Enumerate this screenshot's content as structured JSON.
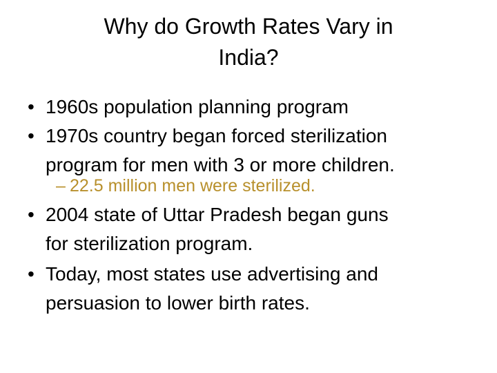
{
  "slide": {
    "background_color": "#ffffff",
    "text_color": "#000000",
    "accent_color": "#B8902C",
    "title": {
      "lines": [
        "Why do Growth Rates Vary in",
        "India?"
      ]
    },
    "bullets": [
      {
        "marker": "•",
        "level": 1,
        "color": "#000000",
        "lines": [
          "1960s population planning program"
        ]
      },
      {
        "marker": "•",
        "level": 1,
        "color": "#000000",
        "lines": [
          "1970s country began forced sterilization",
          "program for men with 3 or more children."
        ]
      },
      {
        "marker": "–",
        "level": 2,
        "color": "#B8902C",
        "lines": [
          "22.5 million men were sterilized."
        ]
      },
      {
        "marker": "•",
        "level": 1,
        "color": "#000000",
        "lines": [
          "2004 state of Uttar Pradesh began guns",
          "for sterilization program."
        ]
      },
      {
        "marker": "•",
        "level": 1,
        "color": "#000000",
        "lines": [
          "Today, most states use advertising and",
          "persuasion to lower birth rates."
        ]
      }
    ]
  }
}
